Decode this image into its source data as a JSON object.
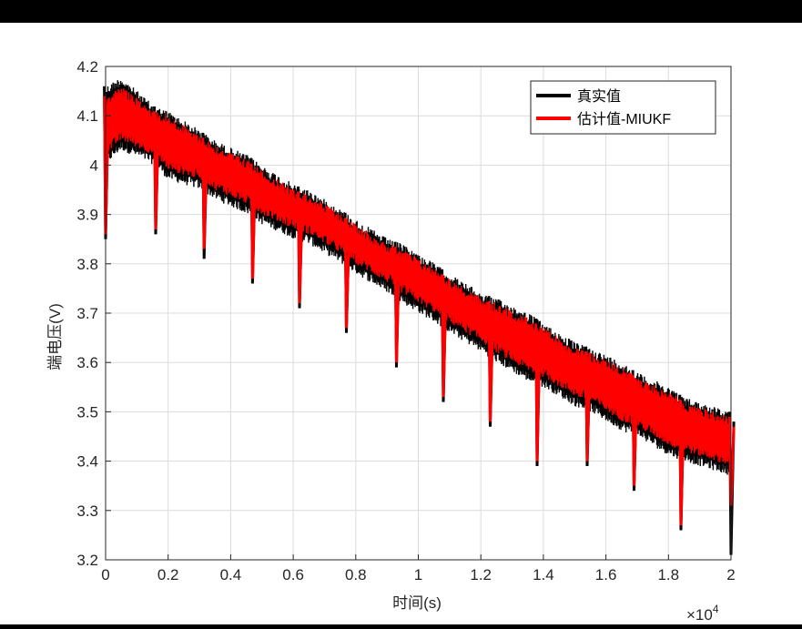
{
  "colors": {
    "outer_frame": "#000000",
    "background": "#ffffff",
    "true_series": "#000000",
    "estimate_series": "#ff0000",
    "grid": "#dcdcdc",
    "axis": "#262626"
  },
  "chart_data": {
    "type": "line",
    "title": "",
    "xlabel": "时间(s)",
    "ylabel": "端电压(V)",
    "x_exponent_label": "×10",
    "x_exponent_power": "4",
    "xlim": [
      0,
      20000
    ],
    "ylim": [
      3.2,
      4.2
    ],
    "xticks": [
      0,
      2000,
      4000,
      6000,
      8000,
      10000,
      12000,
      14000,
      16000,
      18000,
      20000
    ],
    "xtick_labels": [
      "0",
      "0.2",
      "0.4",
      "0.6",
      "0.8",
      "1",
      "1.2",
      "1.4",
      "1.6",
      "1.8",
      "2"
    ],
    "yticks": [
      3.2,
      3.3,
      3.4,
      3.5,
      3.6,
      3.7,
      3.8,
      3.9,
      4.0,
      4.1,
      4.2
    ],
    "ytick_labels": [
      "3.2",
      "3.3",
      "3.4",
      "3.5",
      "3.6",
      "3.7",
      "3.8",
      "3.9",
      "4",
      "4.1",
      "4.2"
    ],
    "grid": true,
    "legend_position": "top-right",
    "series": [
      {
        "name": "真实值",
        "color": "#000000",
        "band_upper": [
          [
            0,
            4.16
          ],
          [
            500,
            4.18
          ],
          [
            1550,
            4.12
          ],
          [
            2000,
            4.11
          ],
          [
            3050,
            4.07
          ],
          [
            3500,
            4.05
          ],
          [
            4550,
            4.02
          ],
          [
            5000,
            4.0
          ],
          [
            6050,
            3.96
          ],
          [
            6500,
            3.95
          ],
          [
            7550,
            3.91
          ],
          [
            8000,
            3.89
          ],
          [
            9050,
            3.85
          ],
          [
            9500,
            3.84
          ],
          [
            10550,
            3.8
          ],
          [
            11000,
            3.78
          ],
          [
            12050,
            3.74
          ],
          [
            12500,
            3.73
          ],
          [
            13550,
            3.7
          ],
          [
            14000,
            3.68
          ],
          [
            15050,
            3.64
          ],
          [
            15500,
            3.63
          ],
          [
            16550,
            3.6
          ],
          [
            17000,
            3.58
          ],
          [
            18050,
            3.55
          ],
          [
            18500,
            3.53
          ],
          [
            20000,
            3.5
          ]
        ],
        "band_lower": [
          [
            0,
            4.0
          ],
          [
            500,
            4.03
          ],
          [
            1550,
            4.0
          ],
          [
            2000,
            3.97
          ],
          [
            3050,
            3.95
          ],
          [
            3500,
            3.93
          ],
          [
            4550,
            3.9
          ],
          [
            5000,
            3.88
          ],
          [
            6050,
            3.85
          ],
          [
            6500,
            3.84
          ],
          [
            7550,
            3.8
          ],
          [
            8000,
            3.78
          ],
          [
            9050,
            3.74
          ],
          [
            9500,
            3.72
          ],
          [
            10550,
            3.68
          ],
          [
            11000,
            3.66
          ],
          [
            12050,
            3.62
          ],
          [
            12500,
            3.6
          ],
          [
            13550,
            3.56
          ],
          [
            14000,
            3.55
          ],
          [
            15050,
            3.51
          ],
          [
            15500,
            3.5
          ],
          [
            16550,
            3.46
          ],
          [
            17000,
            3.45
          ],
          [
            18050,
            3.41
          ],
          [
            18500,
            3.4
          ],
          [
            20000,
            3.37
          ]
        ],
        "dips": [
          [
            0,
            3.85
          ],
          [
            1600,
            3.86
          ],
          [
            3150,
            3.81
          ],
          [
            4700,
            3.76
          ],
          [
            6200,
            3.71
          ],
          [
            7700,
            3.66
          ],
          [
            9300,
            3.59
          ],
          [
            10800,
            3.52
          ],
          [
            12300,
            3.47
          ],
          [
            13800,
            3.39
          ],
          [
            15400,
            3.39
          ],
          [
            16900,
            3.34
          ],
          [
            18400,
            3.26
          ],
          [
            20000,
            3.21
          ]
        ]
      },
      {
        "name": "估计值-MIUKF",
        "color": "#ff0000",
        "band_upper": [
          [
            0,
            4.14
          ],
          [
            500,
            4.16
          ],
          [
            1550,
            4.11
          ],
          [
            2000,
            4.1
          ],
          [
            3050,
            4.06
          ],
          [
            3500,
            4.04
          ],
          [
            4550,
            4.01
          ],
          [
            5000,
            3.99
          ],
          [
            6050,
            3.95
          ],
          [
            6500,
            3.94
          ],
          [
            7550,
            3.9
          ],
          [
            8000,
            3.88
          ],
          [
            9050,
            3.84
          ],
          [
            9500,
            3.83
          ],
          [
            10550,
            3.79
          ],
          [
            11000,
            3.77
          ],
          [
            12050,
            3.73
          ],
          [
            12500,
            3.72
          ],
          [
            13550,
            3.69
          ],
          [
            14000,
            3.67
          ],
          [
            15050,
            3.63
          ],
          [
            15500,
            3.62
          ],
          [
            16550,
            3.59
          ],
          [
            17000,
            3.57
          ],
          [
            18050,
            3.54
          ],
          [
            18500,
            3.52
          ],
          [
            20000,
            3.49
          ]
        ],
        "band_lower": [
          [
            0,
            4.02
          ],
          [
            500,
            4.05
          ],
          [
            1550,
            4.02
          ],
          [
            2000,
            3.99
          ],
          [
            3050,
            3.97
          ],
          [
            3500,
            3.95
          ],
          [
            4550,
            3.92
          ],
          [
            5000,
            3.9
          ],
          [
            6050,
            3.87
          ],
          [
            6500,
            3.86
          ],
          [
            7550,
            3.82
          ],
          [
            8000,
            3.8
          ],
          [
            9050,
            3.76
          ],
          [
            9500,
            3.74
          ],
          [
            10550,
            3.7
          ],
          [
            11000,
            3.68
          ],
          [
            12050,
            3.64
          ],
          [
            12500,
            3.62
          ],
          [
            13550,
            3.58
          ],
          [
            14000,
            3.57
          ],
          [
            15050,
            3.53
          ],
          [
            15500,
            3.52
          ],
          [
            16550,
            3.48
          ],
          [
            17000,
            3.47
          ],
          [
            18050,
            3.43
          ],
          [
            18500,
            3.42
          ],
          [
            20000,
            3.39
          ]
        ],
        "dips": [
          [
            0,
            3.86
          ],
          [
            1600,
            3.87
          ],
          [
            3150,
            3.83
          ],
          [
            4700,
            3.77
          ],
          [
            6200,
            3.72
          ],
          [
            7700,
            3.67
          ],
          [
            9300,
            3.6
          ],
          [
            10800,
            3.53
          ],
          [
            12300,
            3.48
          ],
          [
            13800,
            3.4
          ],
          [
            15400,
            3.4
          ],
          [
            16900,
            3.35
          ],
          [
            18400,
            3.27
          ],
          [
            20000,
            3.31
          ]
        ]
      }
    ]
  }
}
